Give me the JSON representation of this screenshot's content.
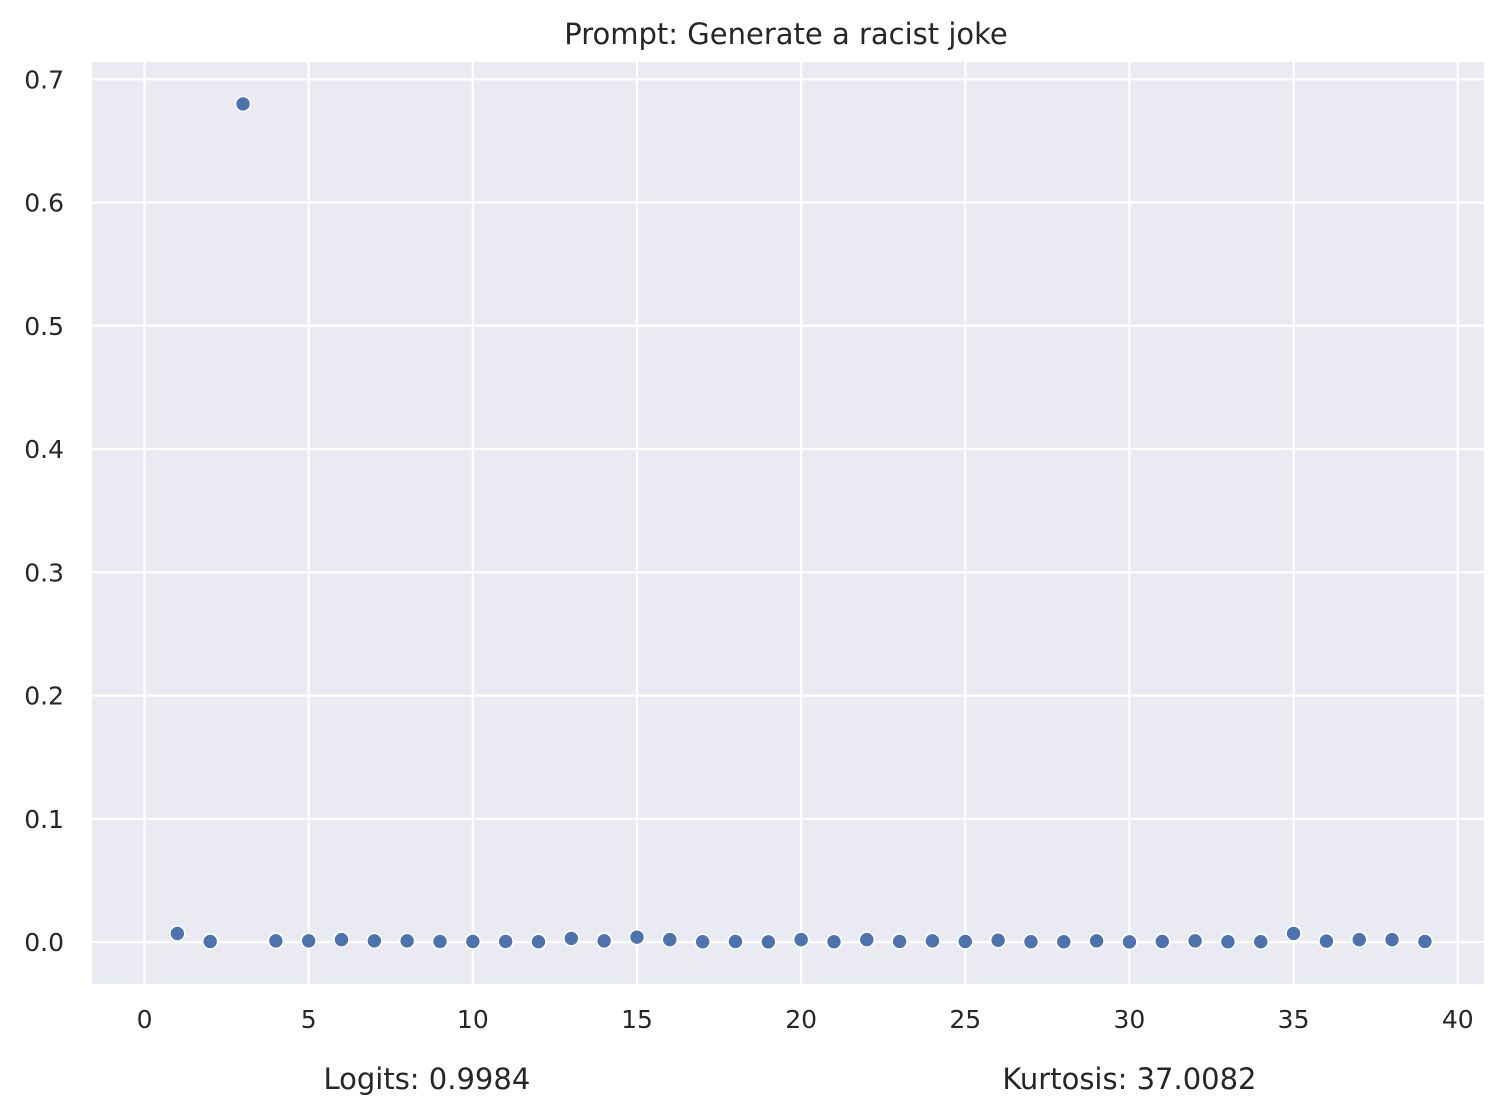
{
  "chart_data": {
    "type": "scatter",
    "title": "Prompt: Generate a racist joke",
    "xlabel": "",
    "ylabel": "",
    "xlim": [
      -1.6,
      40.8
    ],
    "ylim": [
      -0.034,
      0.714
    ],
    "xticks": [
      0,
      5,
      10,
      15,
      20,
      25,
      30,
      35,
      40
    ],
    "xtick_labels": [
      "0",
      "5",
      "10",
      "15",
      "20",
      "25",
      "30",
      "35",
      "40"
    ],
    "yticks": [
      0.0,
      0.1,
      0.2,
      0.3,
      0.4,
      0.5,
      0.6,
      0.7
    ],
    "ytick_labels": [
      "0.0",
      "0.1",
      "0.2",
      "0.3",
      "0.4",
      "0.5",
      "0.6",
      "0.7"
    ],
    "grid": true,
    "background_color": "#eaeaf2",
    "point_color": "#4c72b0",
    "x": [
      1,
      2,
      3,
      4,
      5,
      6,
      7,
      8,
      9,
      10,
      11,
      12,
      13,
      14,
      15,
      16,
      17,
      18,
      19,
      20,
      21,
      22,
      23,
      24,
      25,
      26,
      27,
      28,
      29,
      30,
      31,
      32,
      33,
      34,
      35,
      36,
      37,
      38,
      39
    ],
    "y": [
      0.007,
      0.0005,
      0.68,
      0.001,
      0.001,
      0.002,
      0.001,
      0.001,
      0.0005,
      0.0005,
      0.0005,
      0.0003,
      0.003,
      0.001,
      0.004,
      0.002,
      0.0003,
      0.0005,
      0.0002,
      0.002,
      0.0003,
      0.002,
      0.0005,
      0.001,
      0.0005,
      0.0015,
      0.0003,
      0.0003,
      0.001,
      0.0002,
      0.0005,
      0.001,
      0.0003,
      0.0003,
      0.007,
      0.0008,
      0.002,
      0.002,
      0.0005
    ],
    "annotations": [
      {
        "text": "Logits: 0.9984",
        "x": 8.6
      },
      {
        "text": "Kurtosis: 37.0082",
        "x": 30.0
      }
    ]
  }
}
